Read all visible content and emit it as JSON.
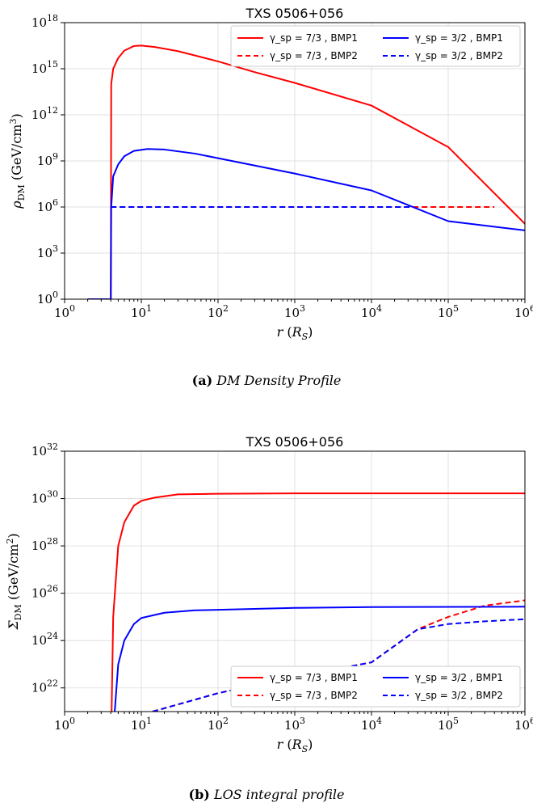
{
  "chart_data": [
    {
      "type": "line",
      "title": "TXS 0506+056",
      "xlabel": "r (R_S)",
      "ylabel": "ρ_DM (GeV/cm³)",
      "x_scale": "log",
      "y_scale": "log",
      "xlim": [
        1,
        1000000
      ],
      "ylim": [
        1,
        1e+18
      ],
      "x_ticks": [
        "10^0",
        "10^1",
        "10^2",
        "10^3",
        "10^4",
        "10^5",
        "10^6"
      ],
      "y_ticks": [
        "10^0",
        "10^3",
        "10^6",
        "10^9",
        "10^12",
        "10^15",
        "10^18"
      ],
      "grid": true,
      "legend_position": "top-right",
      "series": [
        {
          "name": "γ_sp = 7/3 , BMP1",
          "color": "#ff0000",
          "dash": "solid",
          "points": [
            [
              2,
              1
            ],
            [
              4,
              1
            ],
            [
              4,
              1
            ],
            [
              4.05,
              100000000000000.0
            ],
            [
              4.3,
              1000000000000000.0
            ],
            [
              5,
              5000000000000000.0
            ],
            [
              6,
              1.5e+16
            ],
            [
              8,
              3e+16
            ],
            [
              10,
              3.2e+16
            ],
            [
              15,
              2.6e+16
            ],
            [
              30,
              1.4e+16
            ],
            [
              100,
              3000000000000000.0
            ],
            [
              300,
              600000000000000.0
            ],
            [
              1000,
              120000000000000.0
            ],
            [
              10000,
              4000000000000.0
            ],
            [
              100000,
              8000000000.0
            ],
            [
              1000000,
              80000.0
            ]
          ]
        },
        {
          "name": "γ_sp = 7/3 , BMP2",
          "color": "#ff0000",
          "dash": "dashed",
          "points": [
            [
              4,
              1000000.0
            ],
            [
              400000,
              1000000.0
            ]
          ]
        },
        {
          "name": "γ_sp = 3/2 , BMP1",
          "color": "#0000ff",
          "dash": "solid",
          "points": [
            [
              2,
              1
            ],
            [
              4,
              1
            ],
            [
              4.05,
              1000000.0
            ],
            [
              4.3,
              100000000.0
            ],
            [
              5,
              600000000.0
            ],
            [
              6,
              2000000000.0
            ],
            [
              8,
              4500000000.0
            ],
            [
              12,
              6000000000.0
            ],
            [
              20,
              5500000000.0
            ],
            [
              50,
              3000000000.0
            ],
            [
              100,
              1500000000.0
            ],
            [
              1000,
              150000000.0
            ],
            [
              10000,
              12000000.0
            ],
            [
              100000,
              120000.0
            ],
            [
              1000000,
              30000.0
            ]
          ]
        },
        {
          "name": "γ_sp = 3/2 , BMP2",
          "color": "#0000ff",
          "dash": "dashed",
          "points": [
            [
              4,
              1000000.0
            ],
            [
              35000,
              1000000.0
            ]
          ]
        }
      ]
    },
    {
      "type": "line",
      "title": "TXS 0506+056",
      "xlabel": "r (R_S)",
      "ylabel": "Σ_DM (GeV/cm²)",
      "x_scale": "log",
      "y_scale": "log",
      "xlim": [
        1,
        1000000
      ],
      "ylim": [
        1e+21,
        1e+32
      ],
      "x_ticks": [
        "10^0",
        "10^1",
        "10^2",
        "10^3",
        "10^4",
        "10^5",
        "10^6"
      ],
      "y_ticks": [
        "10^22",
        "10^24",
        "10^26",
        "10^28",
        "10^30",
        "10^32"
      ],
      "grid": true,
      "legend_position": "bottom-right",
      "series": [
        {
          "name": "γ_sp = 7/3 , BMP1",
          "color": "#ff0000",
          "dash": "solid",
          "points": [
            [
              4.1,
              1e+21
            ],
            [
              4.3,
              1e+25
            ],
            [
              5,
              1e+28
            ],
            [
              6,
              1e+29
            ],
            [
              8,
              5e+29
            ],
            [
              10,
              8e+29
            ],
            [
              15,
              1.1e+30
            ],
            [
              30,
              1.5e+30
            ],
            [
              100,
              1.6e+30
            ],
            [
              1000,
              1.65e+30
            ],
            [
              1000000,
              1.65e+30
            ]
          ]
        },
        {
          "name": "γ_sp = 7/3 , BMP2",
          "color": "#ff0000",
          "dash": "dashed",
          "points": [
            [
              14,
              1e+21
            ],
            [
              100,
              6e+21
            ],
            [
              1000,
              3e+22
            ],
            [
              10000,
              1.2e+23
            ],
            [
              40000,
              3e+24
            ],
            [
              100000,
              1e+25
            ],
            [
              300000,
              3e+25
            ],
            [
              1000000,
              5e+25
            ]
          ]
        },
        {
          "name": "γ_sp = 3/2 , BMP1",
          "color": "#0000ff",
          "dash": "solid",
          "points": [
            [
              4.5,
              1e+21
            ],
            [
              5,
              1e+23
            ],
            [
              6,
              1e+24
            ],
            [
              8,
              5e+24
            ],
            [
              10,
              9e+24
            ],
            [
              20,
              1.5e+25
            ],
            [
              50,
              1.9e+25
            ],
            [
              100,
              2e+25
            ],
            [
              1000,
              2.4e+25
            ],
            [
              10000,
              2.6e+25
            ],
            [
              1000000,
              2.7e+25
            ]
          ]
        },
        {
          "name": "γ_sp = 3/2 , BMP2",
          "color": "#0000ff",
          "dash": "dashed",
          "points": [
            [
              14,
              1e+21
            ],
            [
              100,
              6e+21
            ],
            [
              1000,
              3e+22
            ],
            [
              10000,
              1.2e+23
            ],
            [
              40000,
              3e+24
            ],
            [
              100000,
              5e+24
            ],
            [
              300000,
              6.5e+24
            ],
            [
              1000000,
              8e+24
            ]
          ]
        }
      ]
    }
  ],
  "captions": [
    {
      "label": "(a)",
      "text": "DM Density Profile"
    },
    {
      "label": "(b)",
      "text": "LOS integral profile"
    }
  ]
}
